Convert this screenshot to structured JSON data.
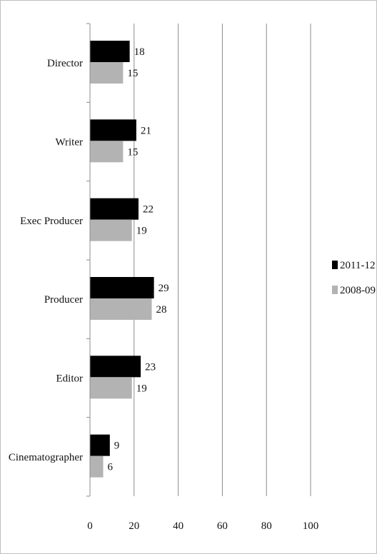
{
  "chart_data": {
    "type": "bar",
    "orientation": "horizontal",
    "categories": [
      "Director",
      "Writer",
      "Exec Producer",
      "Producer",
      "Editor",
      "Cinematographer"
    ],
    "series": [
      {
        "name": "2011-12",
        "color": "#000000",
        "values": [
          18,
          21,
          22,
          29,
          23,
          9
        ]
      },
      {
        "name": "2008-09",
        "color": "#b3b3b3",
        "values": [
          15,
          15,
          19,
          28,
          19,
          6
        ]
      }
    ],
    "xlim": [
      0,
      100
    ],
    "xticks": [
      "0",
      "20",
      "40",
      "60",
      "80",
      "100"
    ],
    "grid": true,
    "legend": "right",
    "data_labels": true
  }
}
